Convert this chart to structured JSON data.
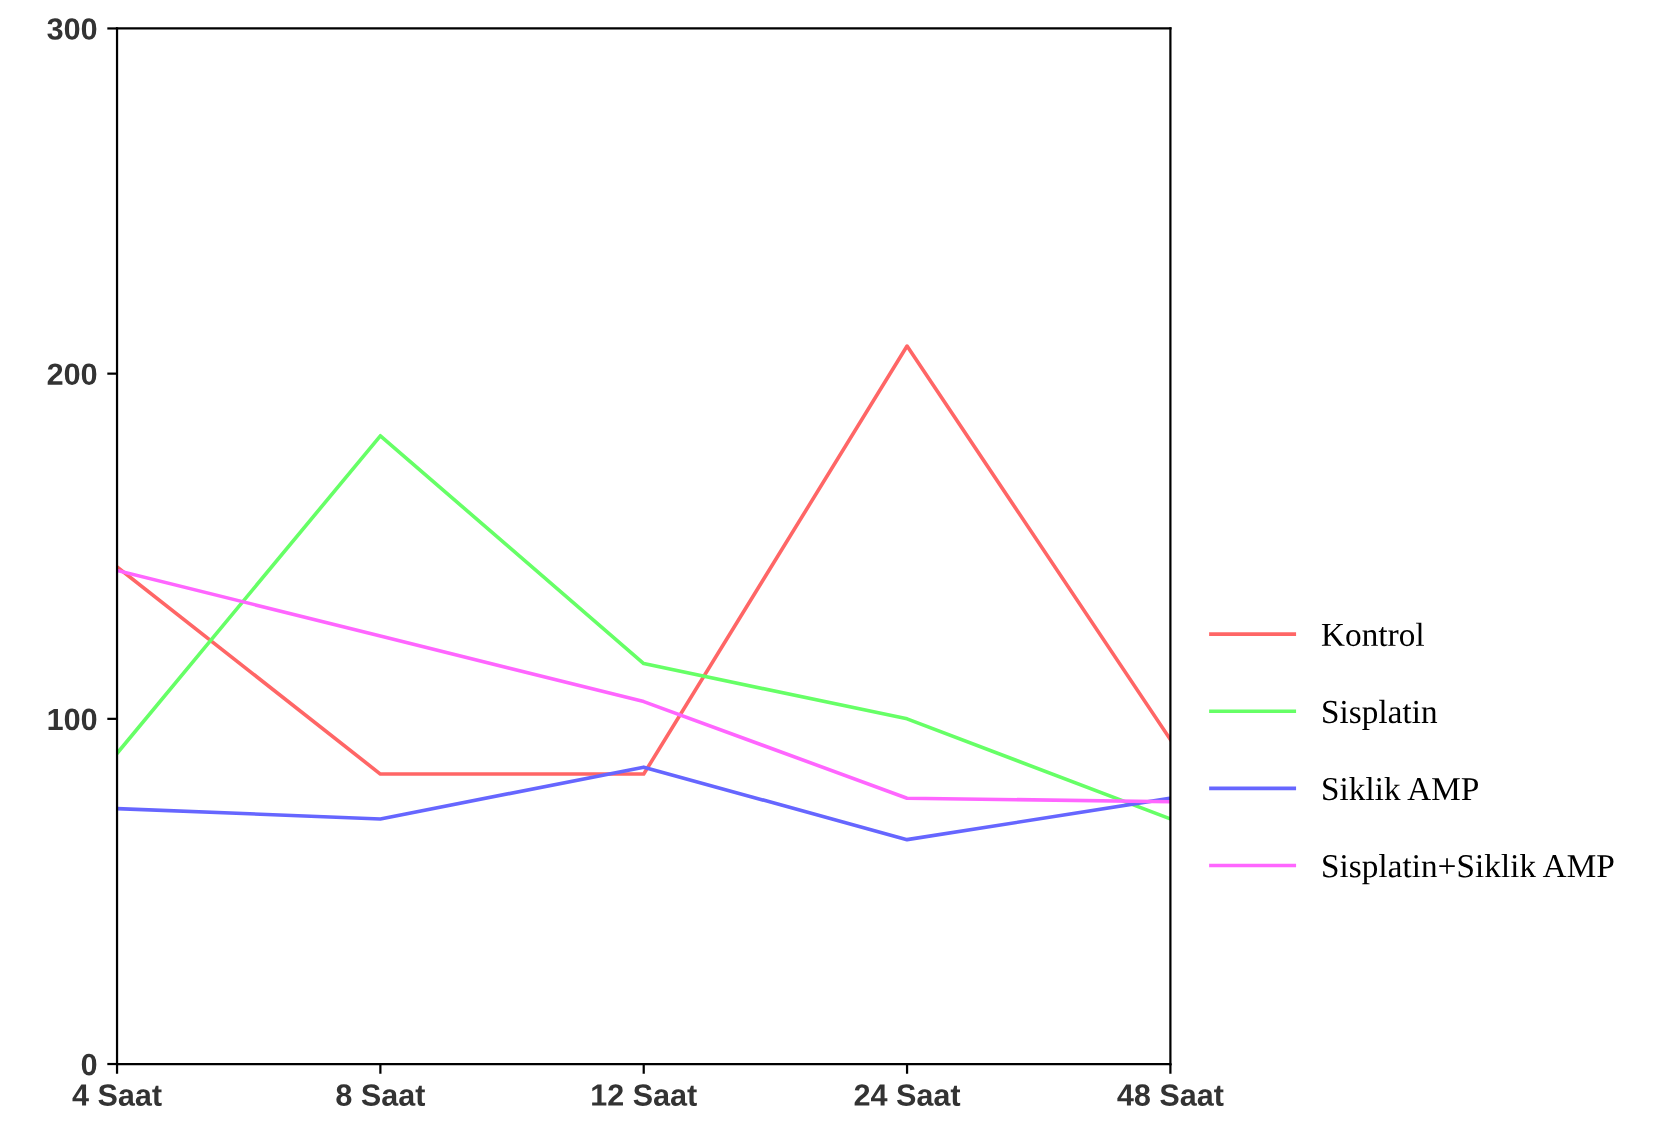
{
  "chart_data": {
    "type": "line",
    "categories": [
      "4 Saat",
      "8 Saat",
      "12 Saat",
      "24 Saat",
      "48 Saat"
    ],
    "series": [
      {
        "name": "Kontrol",
        "color": "#ff6666",
        "values": [
          144,
          84,
          84,
          208,
          94
        ]
      },
      {
        "name": "Sisplatin",
        "color": "#66ff66",
        "values": [
          90,
          182,
          116,
          100,
          71
        ]
      },
      {
        "name": "Siklik AMP",
        "color": "#6666ff",
        "values": [
          74,
          71,
          86,
          65,
          77
        ]
      },
      {
        "name": "Sisplatin+Siklik AMP",
        "color": "#ff66ff",
        "values": [
          143,
          124,
          105,
          77,
          76
        ]
      }
    ],
    "ylim": [
      0,
      300
    ],
    "yticks": [
      0,
      100,
      200,
      300
    ],
    "grid": false,
    "legend": "right",
    "marker": "none",
    "line_style": "solid"
  }
}
